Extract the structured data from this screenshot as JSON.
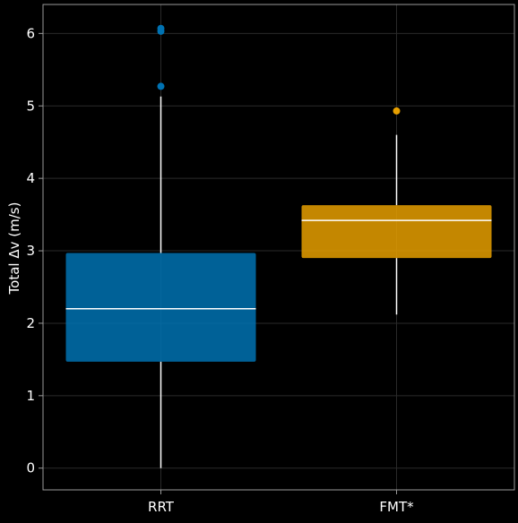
{
  "chart_data": {
    "type": "box",
    "title": "",
    "xlabel": "",
    "ylabel": "Total Δv (m/s)",
    "ylim": [
      -0.3,
      6.4
    ],
    "yticks": [
      0,
      1,
      2,
      3,
      4,
      5,
      6
    ],
    "grid": true,
    "background": "#000000",
    "categories": [
      "RRT",
      "FMT*"
    ],
    "series": [
      {
        "category": "RRT",
        "color": "#0072b2",
        "whisker_low": 0.0,
        "q1": 1.47,
        "median": 2.2,
        "q3": 2.97,
        "whisker_high": 5.13,
        "outliers": [
          5.27,
          6.03,
          6.07
        ]
      },
      {
        "category": "FMT*",
        "color": "#e69f00",
        "whisker_low": 2.12,
        "q1": 2.9,
        "median": 3.42,
        "q3": 3.63,
        "whisker_high": 4.6,
        "outliers": [
          4.93
        ]
      }
    ]
  }
}
